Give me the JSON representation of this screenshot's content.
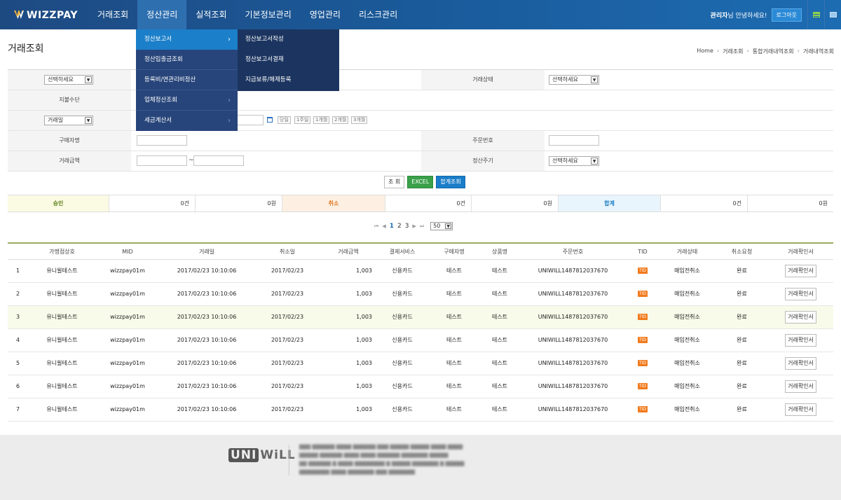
{
  "brand": {
    "logo": "WIZZPAY"
  },
  "nav": {
    "items": [
      "거래조회",
      "정산관리",
      "실적조회",
      "기본정보관리",
      "영업관리",
      "리스크관리"
    ],
    "active_index": 1
  },
  "user": {
    "name": "관리자",
    "greeting_suffix": "님 안녕하세요!",
    "logout_label": "로그아웃"
  },
  "page": {
    "title": "거래조회",
    "breadcrumb": [
      "Home",
      "거래조회",
      "통합거래내역조회",
      "거래내역조회"
    ]
  },
  "menu": {
    "level1": [
      {
        "label": "정산보고서",
        "has_sub": true,
        "active": true
      },
      {
        "label": "정산입출금조회",
        "has_sub": false
      },
      {
        "label": "등록비/연관리비정산",
        "has_sub": false
      },
      {
        "label": "업체정산조회",
        "has_sub": true
      },
      {
        "label": "세금계산서",
        "has_sub": true
      }
    ],
    "level2": [
      "정산보고서작성",
      "정산보고서결재",
      "지급보류/해제등록"
    ]
  },
  "form": {
    "row1": {
      "select": "선택하세요",
      "label_right": "거래상태",
      "select_right": "선택하세요"
    },
    "row2": {
      "label": "지불수단"
    },
    "row3": {
      "select": "거래일",
      "periods": [
        "당일",
        "1주일",
        "1개월",
        "2개월",
        "3개월"
      ]
    },
    "row4": {
      "label": "구매자명",
      "label_right": "주문번호"
    },
    "row5": {
      "label": "거래금액",
      "tilde": "~",
      "label_right": "정산주기",
      "select_right": "선택하세요"
    }
  },
  "actions": {
    "search": "조 회",
    "excel": "EXCEL",
    "sum": "합계조회"
  },
  "summary": {
    "approve_label": "승인",
    "approve_count": "0건",
    "approve_amount": "0원",
    "cancel_label": "취소",
    "cancel_count": "0건",
    "cancel_amount": "0원",
    "total_label": "합계",
    "total_count": "0건",
    "total_amount": "0원"
  },
  "pager": {
    "first": "⏮",
    "prev": "◀",
    "pages": [
      "1",
      "2",
      "3"
    ],
    "next": "▶",
    "last": "⏭",
    "page_size": "50"
  },
  "table": {
    "headers": [
      "",
      "가맹점상호",
      "MID",
      "거래일",
      "취소일",
      "거래금액",
      "결제서비스",
      "구매자명",
      "상품명",
      "주문번호",
      "TID",
      "거래상태",
      "취소요청",
      "거래확인서"
    ],
    "rows": [
      {
        "no": "1",
        "store": "유니윌테스트",
        "mid": "wizzpay01m",
        "date": "2017/02/23 10:10:06",
        "cancel": "2017/02/23",
        "amount": "1,003",
        "service": "신용카드",
        "buyer": "테스트",
        "product": "테스트",
        "order": "UNIWILL1487812037670",
        "tid": "TID",
        "status": "매입전취소",
        "req": "완료",
        "btn": "거래확인서"
      },
      {
        "no": "2",
        "store": "유니윌테스트",
        "mid": "wizzpay01m",
        "date": "2017/02/23 10:10:06",
        "cancel": "2017/02/23",
        "amount": "1,003",
        "service": "신용카드",
        "buyer": "테스트",
        "product": "테스트",
        "order": "UNIWILL1487812037670",
        "tid": "TID",
        "status": "매입전취소",
        "req": "완료",
        "btn": "거래확인서"
      },
      {
        "no": "3",
        "store": "유니윌테스트",
        "mid": "wizzpay01m",
        "date": "2017/02/23 10:10:06",
        "cancel": "2017/02/23",
        "amount": "1,003",
        "service": "신용카드",
        "buyer": "테스트",
        "product": "테스트",
        "order": "UNIWILL1487812037670",
        "tid": "TID",
        "status": "매입전취소",
        "req": "완료",
        "btn": "거래확인서"
      },
      {
        "no": "4",
        "store": "유니윌테스트",
        "mid": "wizzpay01m",
        "date": "2017/02/23 10:10:06",
        "cancel": "2017/02/23",
        "amount": "1,003",
        "service": "신용카드",
        "buyer": "테스트",
        "product": "테스트",
        "order": "UNIWILL1487812037670",
        "tid": "TID",
        "status": "매입전취소",
        "req": "완료",
        "btn": "거래확인서"
      },
      {
        "no": "5",
        "store": "유니윌테스트",
        "mid": "wizzpay01m",
        "date": "2017/02/23 10:10:06",
        "cancel": "2017/02/23",
        "amount": "1,003",
        "service": "신용카드",
        "buyer": "테스트",
        "product": "테스트",
        "order": "UNIWILL1487812037670",
        "tid": "TID",
        "status": "매입전취소",
        "req": "완료",
        "btn": "거래확인서"
      },
      {
        "no": "6",
        "store": "유니윌테스트",
        "mid": "wizzpay01m",
        "date": "2017/02/23 10:10:06",
        "cancel": "2017/02/23",
        "amount": "1,003",
        "service": "신용카드",
        "buyer": "테스트",
        "product": "테스트",
        "order": "UNIWILL1487812037670",
        "tid": "TID",
        "status": "매입전취소",
        "req": "완료",
        "btn": "거래확인서"
      },
      {
        "no": "7",
        "store": "유니윌테스트",
        "mid": "wizzpay01m",
        "date": "2017/02/23 10:10:06",
        "cancel": "2017/02/23",
        "amount": "1,003",
        "service": "신용카드",
        "buyer": "테스트",
        "product": "테스트",
        "order": "UNIWILL1487812037670",
        "tid": "TID",
        "status": "매입전취소",
        "req": "완료",
        "btn": "거래확인서"
      }
    ]
  },
  "footer": {
    "logo": "UNIWILL"
  },
  "colors": {
    "nav_bg": "#1e4a82",
    "menu_active": "#1b7fc9",
    "tid_badge": "#f27a1c",
    "excel": "#3aa14a"
  }
}
